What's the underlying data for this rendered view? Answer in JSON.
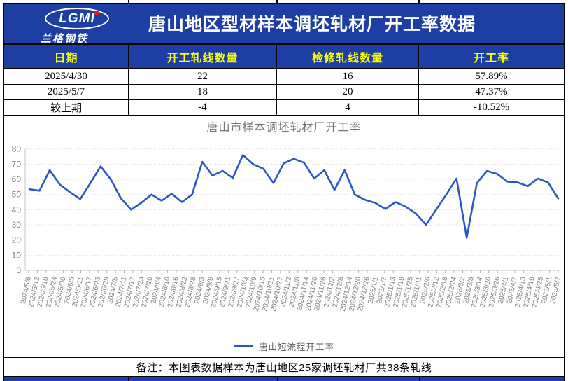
{
  "header": {
    "title": "唐山地区型材样本调坯轧材厂开工率数据",
    "logo_text": "LGMI",
    "logo_subtext": "兰格钢铁"
  },
  "table": {
    "columns": [
      "日期",
      "开工轧线数量",
      "检修轧线数量",
      "开工率"
    ],
    "rows": [
      [
        "2025/4/30",
        "22",
        "16",
        "57.89%"
      ],
      [
        "2025/5/7",
        "18",
        "20",
        "47.37%"
      ],
      [
        "较上期",
        "-4",
        "4",
        "-10.52%"
      ]
    ]
  },
  "chart_data": {
    "type": "line",
    "title": "唐山市样本调坯轧材厂开工率",
    "legend_label": "唐山短流程开工率",
    "legend_position": "bottom",
    "grid": true,
    "ylim": [
      0,
      80
    ],
    "yticks": [
      0,
      10,
      20,
      30,
      40,
      50,
      60,
      70,
      80
    ],
    "x_labels": [
      "2024/5/6",
      "2024/5/12",
      "2024/5/18",
      "2024/5/24",
      "2024/5/30",
      "2024/6/5",
      "2024/6/11",
      "2024/6/17",
      "2024/6/23",
      "2024/6/29",
      "2024/7/5",
      "2024/7/11",
      "2024/7/17",
      "2024/7/23",
      "2024/7/29",
      "2024/8/4",
      "2024/8/10",
      "2024/8/16",
      "2024/8/22",
      "2024/8/28",
      "2024/9/3",
      "2024/9/9",
      "2024/9/15",
      "2024/9/21",
      "2024/9/27",
      "2024/10/3",
      "2024/10/9",
      "2024/10/15",
      "2024/10/21",
      "2024/10/27",
      "2024/11/2",
      "2024/11/8",
      "2024/11/14",
      "2024/11/20",
      "2024/11/26",
      "2024/12/2",
      "2024/12/8",
      "2024/12/14",
      "2024/12/20",
      "2024/12/26",
      "2025/1/1",
      "2025/1/7",
      "2025/1/13",
      "2025/1/19",
      "2025/1/25",
      "2025/1/31",
      "2025/2/6",
      "2025/2/12",
      "2025/2/18",
      "2025/2/24",
      "2025/3/2",
      "2025/3/8",
      "2025/3/14",
      "2025/3/20",
      "2025/3/26",
      "2025/4/1",
      "2025/4/7",
      "2025/4/13",
      "2025/4/19",
      "2025/4/25",
      "2025/5/1",
      "2025/5/7"
    ],
    "series": [
      {
        "name": "唐山短流程开工率",
        "x": [
          "2024/5/8",
          "2024/5/15",
          "2024/5/22",
          "2024/5/29",
          "2024/6/5",
          "2024/6/12",
          "2024/6/19",
          "2024/6/26",
          "2024/7/3",
          "2024/7/10",
          "2024/7/17",
          "2024/7/24",
          "2024/7/31",
          "2024/8/7",
          "2024/8/14",
          "2024/8/21",
          "2024/8/28",
          "2024/9/4",
          "2024/9/11",
          "2024/9/18",
          "2024/9/25",
          "2024/10/2",
          "2024/10/9",
          "2024/10/16",
          "2024/10/23",
          "2024/10/30",
          "2024/11/6",
          "2024/11/13",
          "2024/11/20",
          "2024/11/27",
          "2024/12/4",
          "2024/12/11",
          "2024/12/18",
          "2024/12/25",
          "2025/1/1",
          "2025/1/8",
          "2025/1/15",
          "2025/1/22",
          "2025/1/29",
          "2025/2/5",
          "2025/2/12",
          "2025/2/19",
          "2025/2/26",
          "2025/3/5",
          "2025/3/12",
          "2025/3/19",
          "2025/3/26",
          "2025/4/2",
          "2025/4/9",
          "2025/4/16",
          "2025/4/23",
          "2025/4/30",
          "2025/5/7"
        ],
        "values": [
          53.5,
          52.5,
          66,
          56.5,
          51.5,
          47,
          57.5,
          68.5,
          60,
          47.5,
          40,
          44.5,
          50,
          46,
          50.5,
          45,
          50,
          71.5,
          62.5,
          65.5,
          61,
          76,
          70,
          67,
          57.5,
          70.5,
          73.5,
          71,
          60.5,
          66,
          53,
          66,
          50,
          46.5,
          44.5,
          40.5,
          45,
          42,
          37.5,
          30,
          40,
          50,
          60.5,
          21.5,
          57.5,
          65.5,
          63.5,
          58.5,
          58,
          55.5,
          60.5,
          57.89,
          47.37
        ]
      }
    ]
  },
  "footer": {
    "note": "备注：本图表数据样本为唐山地区25家调坯轧材厂共38条轧线"
  },
  "colors": {
    "brand_blue": "#1d3fa3",
    "accent_yellow": "#ffff00",
    "line_blue": "#2a57c4",
    "grid_gray": "#d9d9d9",
    "axis_gray": "#808080",
    "title_gray": "#737373",
    "logo_red": "#e01f1f"
  }
}
